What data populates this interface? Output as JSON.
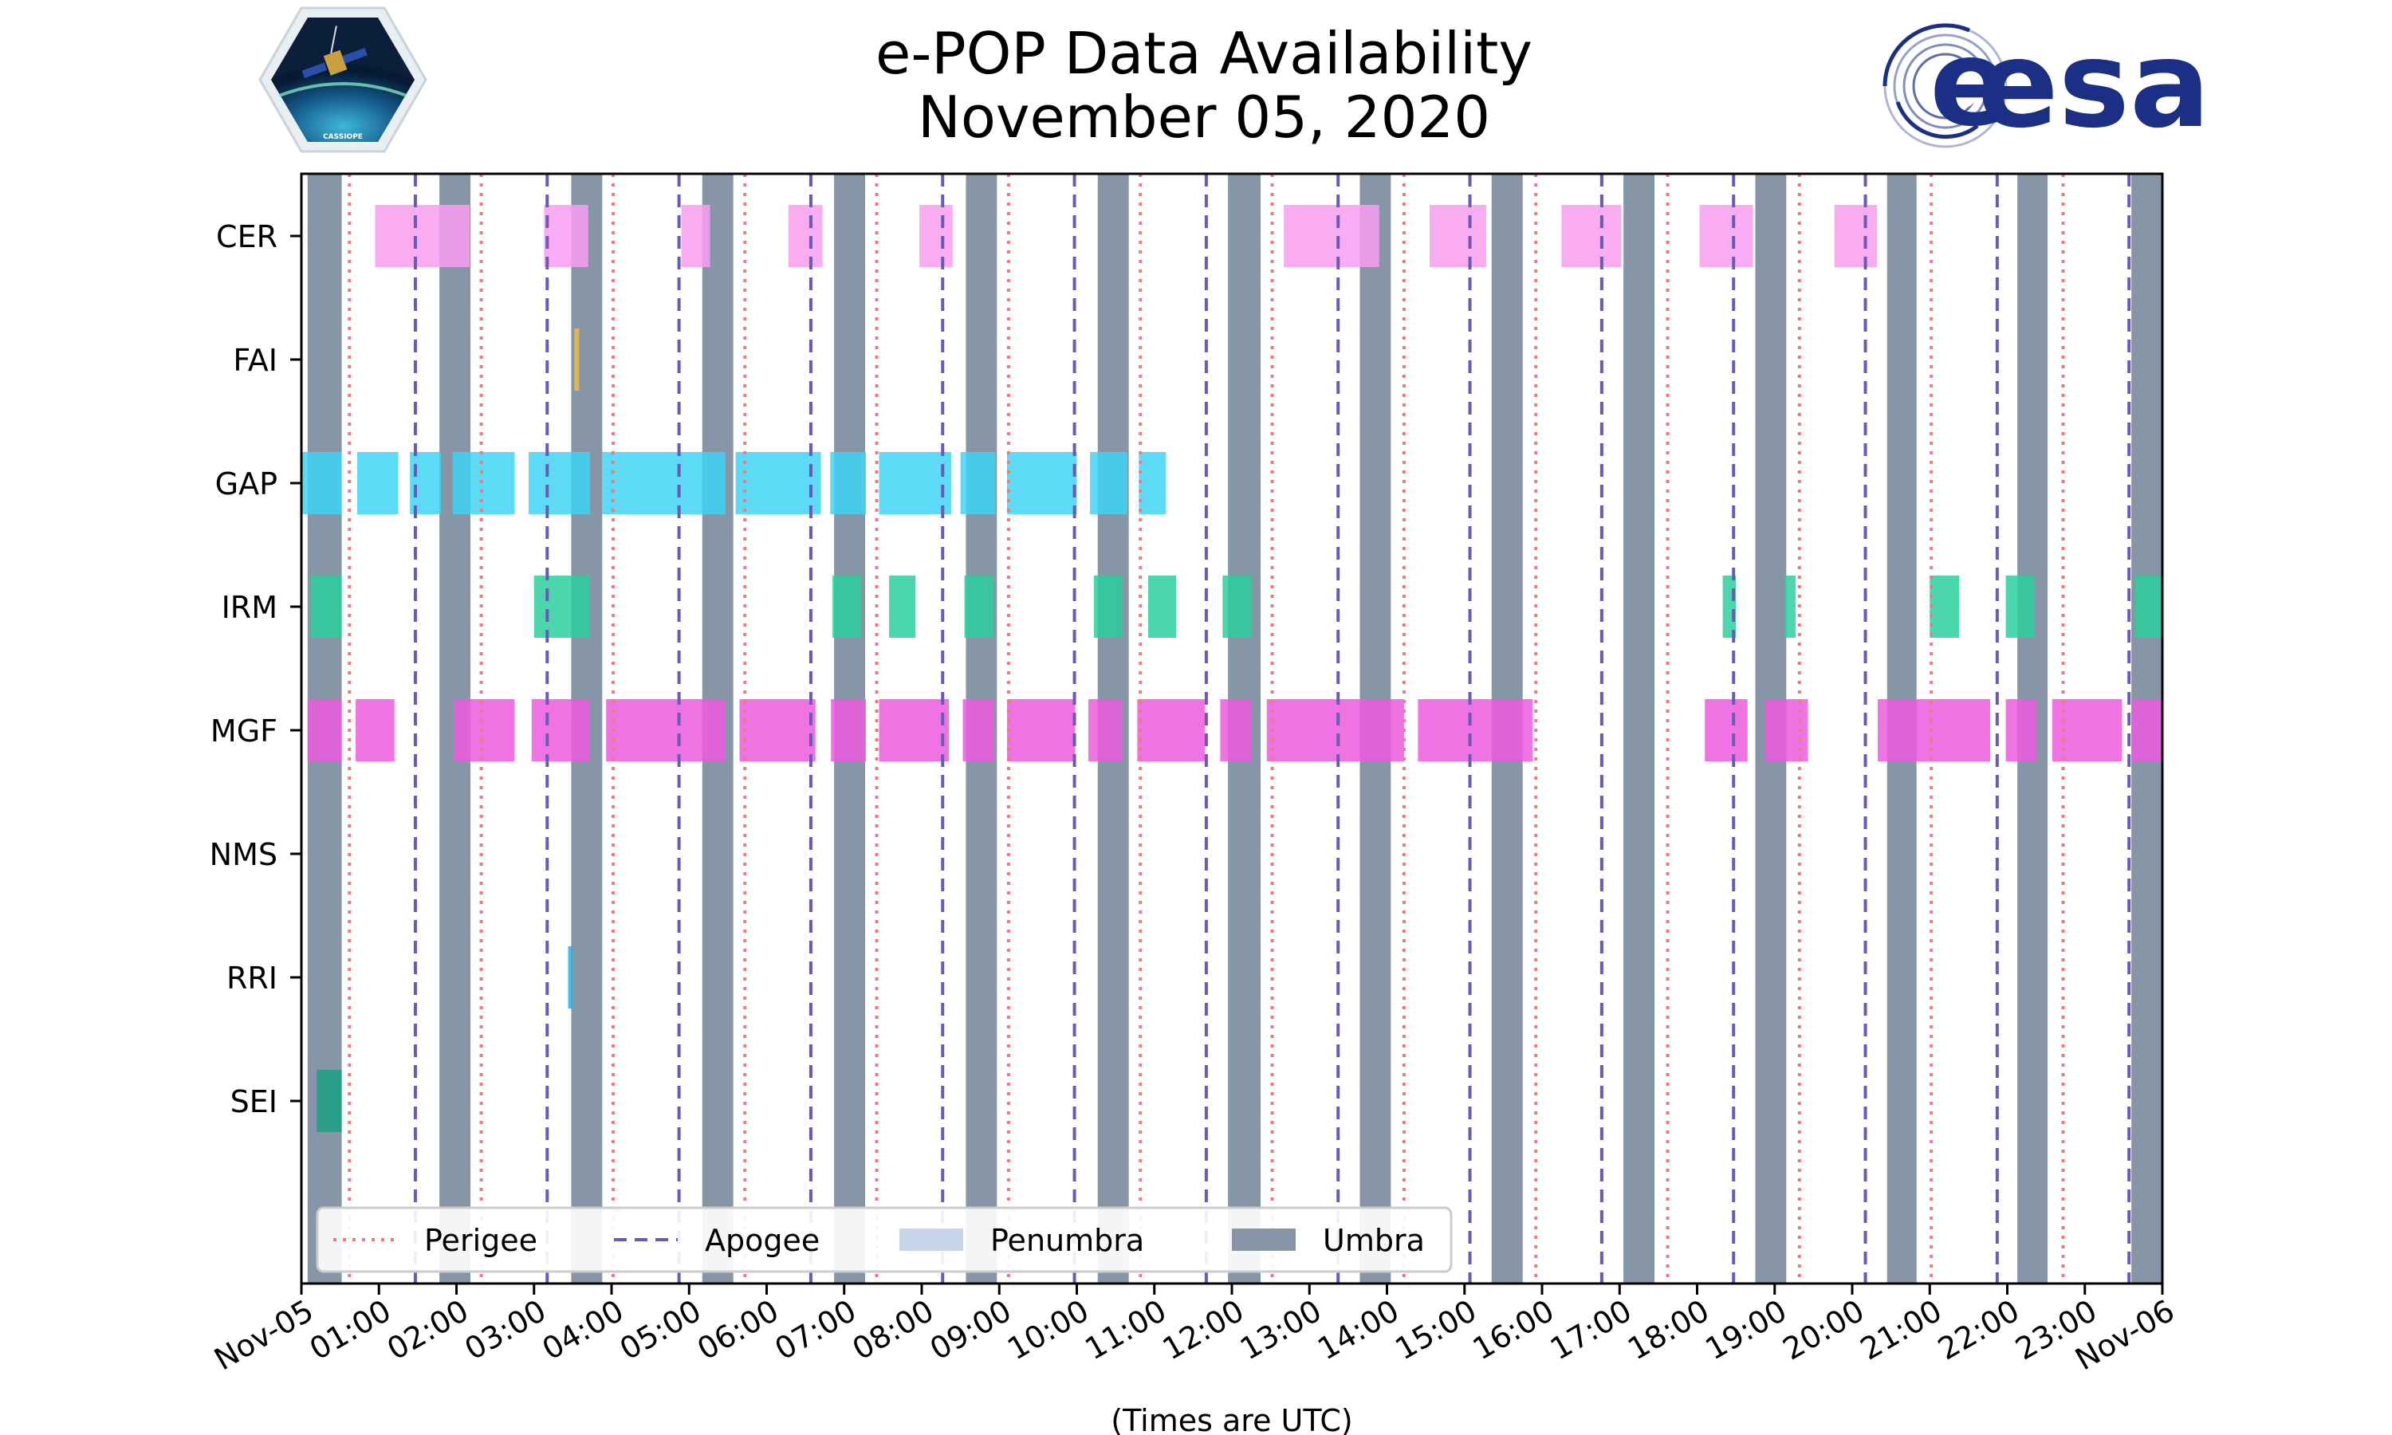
{
  "chart_data": {
    "type": "timeline",
    "title": [
      "e-POP Data Availability",
      "November 05, 2020"
    ],
    "xlabel": "(Times are UTC)",
    "x_range_hours": [
      0,
      24
    ],
    "x_tick_labels": [
      "Nov-05",
      "01:00",
      "02:00",
      "03:00",
      "04:00",
      "05:00",
      "06:00",
      "07:00",
      "08:00",
      "09:00",
      "10:00",
      "11:00",
      "12:00",
      "13:00",
      "14:00",
      "15:00",
      "16:00",
      "17:00",
      "18:00",
      "19:00",
      "20:00",
      "21:00",
      "22:00",
      "23:00",
      "Nov-06"
    ],
    "instruments": [
      "CER",
      "FAI",
      "GAP",
      "IRM",
      "MGF",
      "NMS",
      "RRI",
      "SEI"
    ],
    "instrument_colors": {
      "CER": "#f99ef0",
      "FAI": "#f2b84a",
      "GAP": "#3fd4f5",
      "IRM": "#2bcf9c",
      "MGF": "#ec5ade",
      "NMS": "#999999",
      "RRI": "#27b2da",
      "SEI": "#1aa080"
    },
    "intervals": {
      "CER": [
        [
          0.95,
          2.17
        ],
        [
          3.13,
          3.7
        ],
        [
          4.9,
          5.27
        ],
        [
          6.28,
          6.72
        ],
        [
          7.97,
          8.4
        ],
        [
          12.67,
          13.9
        ],
        [
          14.55,
          15.28
        ],
        [
          16.25,
          17.02
        ],
        [
          18.03,
          18.72
        ],
        [
          19.77,
          20.32
        ]
      ],
      "FAI": [
        [
          3.52,
          3.57
        ]
      ],
      "GAP": [
        [
          0.0,
          0.52
        ],
        [
          0.72,
          1.25
        ],
        [
          1.4,
          1.8
        ],
        [
          1.95,
          2.75
        ],
        [
          2.93,
          3.72
        ],
        [
          3.88,
          5.47
        ],
        [
          5.6,
          6.7
        ],
        [
          6.82,
          7.28
        ],
        [
          7.45,
          8.38
        ],
        [
          8.5,
          8.95
        ],
        [
          9.1,
          10.0
        ],
        [
          10.17,
          10.65
        ],
        [
          10.8,
          11.15
        ]
      ],
      "IRM": [
        [
          0.12,
          0.52
        ],
        [
          3.0,
          3.72
        ],
        [
          6.85,
          7.22
        ],
        [
          7.58,
          7.92
        ],
        [
          8.55,
          8.93
        ],
        [
          10.22,
          10.58
        ],
        [
          10.92,
          11.28
        ],
        [
          11.88,
          12.25
        ],
        [
          18.33,
          18.5
        ],
        [
          19.13,
          19.27
        ],
        [
          21.0,
          21.38
        ],
        [
          21.98,
          22.35
        ],
        [
          23.65,
          24.0
        ]
      ],
      "MGF": [
        [
          0.08,
          0.52
        ],
        [
          0.7,
          1.2
        ],
        [
          1.97,
          2.75
        ],
        [
          2.97,
          3.72
        ],
        [
          3.93,
          5.47
        ],
        [
          5.65,
          6.63
        ],
        [
          6.83,
          7.28
        ],
        [
          7.45,
          8.35
        ],
        [
          8.53,
          8.93
        ],
        [
          9.1,
          9.98
        ],
        [
          10.15,
          10.58
        ],
        [
          10.78,
          11.65
        ],
        [
          11.85,
          12.25
        ],
        [
          12.45,
          14.22
        ],
        [
          14.4,
          15.88
        ],
        [
          18.1,
          18.65
        ],
        [
          18.88,
          19.43
        ],
        [
          20.33,
          21.78
        ],
        [
          21.98,
          22.38
        ],
        [
          22.58,
          23.48
        ],
        [
          23.6,
          24.0
        ]
      ],
      "NMS": [],
      "RRI": [
        [
          3.44,
          3.5
        ]
      ],
      "SEI": [
        [
          0.2,
          0.52
        ]
      ]
    },
    "umbra": [
      [
        0.08,
        0.52
      ],
      [
        1.78,
        2.18
      ],
      [
        3.48,
        3.88
      ],
      [
        5.17,
        5.57
      ],
      [
        6.87,
        7.27
      ],
      [
        8.57,
        8.97
      ],
      [
        10.27,
        10.67
      ],
      [
        11.95,
        12.37
      ],
      [
        13.65,
        14.05
      ],
      [
        15.35,
        15.75
      ],
      [
        17.05,
        17.45
      ],
      [
        18.75,
        19.15
      ],
      [
        20.45,
        20.83
      ],
      [
        22.13,
        22.52
      ],
      [
        23.6,
        24.0
      ]
    ],
    "perigee": [
      0.62,
      2.32,
      4.02,
      5.72,
      7.42,
      9.12,
      10.82,
      12.52,
      14.22,
      15.92,
      17.62,
      19.32,
      21.02,
      22.72
    ],
    "apogee": [
      1.47,
      3.17,
      4.87,
      6.57,
      8.27,
      9.97,
      11.67,
      13.37,
      15.07,
      16.77,
      18.47,
      20.17,
      21.87,
      23.57
    ],
    "legend": [
      {
        "label": "Perigee",
        "style": "dotted",
        "color": "#f07a7a"
      },
      {
        "label": "Apogee",
        "style": "dashed",
        "color": "#6a5ab8"
      },
      {
        "label": "Penumbra",
        "style": "patch",
        "color": "#c7d6e8"
      },
      {
        "label": "Umbra",
        "style": "patch",
        "color": "#8696a7"
      }
    ],
    "legend_position": "lower-left"
  },
  "logos": {
    "mission_badge_text": "CASSIOPE",
    "agency_text": "esa"
  }
}
